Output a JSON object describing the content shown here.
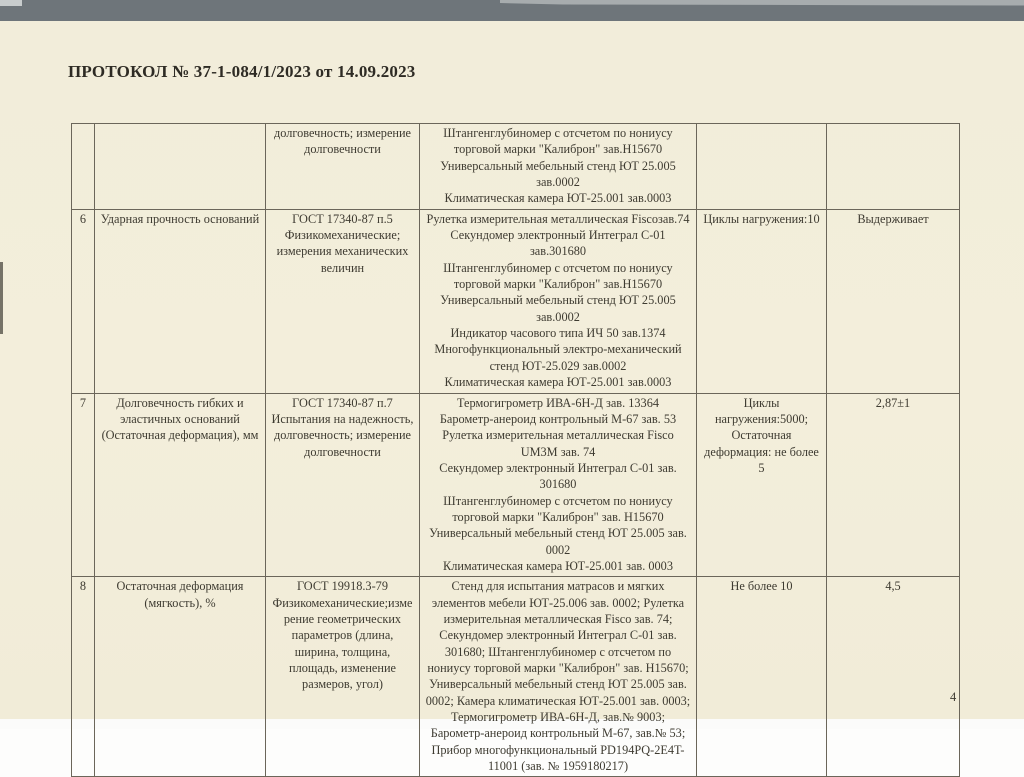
{
  "page": {
    "title": "ПРОТОКОЛ № 37-1-084/1/2023 от 14.09.2023",
    "page_number": "4"
  },
  "colors": {
    "paper": "#f2edda",
    "ink": "#3e3b31",
    "table_border": "#6b665a",
    "scanner_bar": "#6e757a"
  },
  "table": {
    "rows": [
      {
        "num": "",
        "name": "",
        "method": "долговечность; измерение\nдолговечности",
        "equipment": "Штангенглубиномер с отсчетом по нониусу торговой марки \"Калиброн\" зав.Н15670\nУниверсальный мебельный стенд ЮТ 25.005 зав.0002\nКлиматическая камера ЮТ-25.001 зав.0003",
        "norm": "",
        "result": ""
      },
      {
        "num": "6",
        "name": "Ударная прочность оснований",
        "method": "ГОСТ 17340-87 п.5\nФизикомеханические;\nизмерения механических\nвеличин",
        "equipment": "Рулетка измерительная металлическая Fiscoзав.74\nСекундомер электронный Интеграл С-01 зав.301680\nШтангенглубиномер с отсчетом по нониусу торговой марки \"Калиброн\" зав.Н15670\nУниверсальный мебельный стенд ЮТ 25.005 зав.0002\nИндикатор часового типа ИЧ 50 зав.1374\nМногофункциональный электро-механический стенд ЮТ-25.029 зав.0002\nКлиматическая камера ЮТ-25.001 зав.0003",
        "norm": "Циклы нагружения:10",
        "result": "Выдерживает"
      },
      {
        "num": "7",
        "name": "Долговечность гибких и\nэластичных оснований\n(Остаточная деформация), мм",
        "method": "ГОСТ 17340-87 п.7\nИспытания на надежность,\nдолговечность; измерение\nдолговечности",
        "equipment": "Термогигрометр ИВА-6Н-Д зав. 13364\nБарометр-анероид контрольный М-67 зав. 53\nРулетка измерительная металлическая Fisco UM3M зав. 74\nСекундомер электронный Интеграл С-01 зав. 301680\nШтангенглубиномер с отсчетом по нониусу торговой марки \"Калиброн\" зав. Н15670\nУниверсальный мебельный стенд ЮТ 25.005 зав. 0002\nКлиматическая камера ЮТ-25.001 зав. 0003",
        "norm": "Циклы\nнагружения:5000;\nОстаточная\nдеформация: не более 5",
        "result": "2,87±1"
      },
      {
        "num": "8",
        "name": "Остаточная деформация\n(мягкость), %",
        "method": "ГОСТ 19918.3-79\nФизикомеханические;измерение геометрических параметров (длина,\nширина, толщина,\nплощадь, изменение\nразмеров, угол)",
        "equipment": "Стенд для испытания матрасов и мягких элементов мебели  ЮТ-25.006 зав. 0002; Рулетка измерительная металлическая Fisco зав. 74; Секундомер электронный Интеграл С-01 зав. 301680; Штангенглубиномер с отсчетом по нониусу торговой марки \"Калиброн\" зав. Н15670; Универсальный мебельный стенд ЮТ 25.005 зав. 0002; Камера климатическая ЮТ-25.001 зав. 0003; Термогигрометр ИВА-6Н-Д, зав.№ 9003; Барометр-анероид контрольный М-67, зав.№ 53; Прибор многофункциональный PD194PQ-2E4T-11001 (зав. № 1959180217)",
        "norm": "Не более 10",
        "result": "4,5"
      }
    ]
  }
}
